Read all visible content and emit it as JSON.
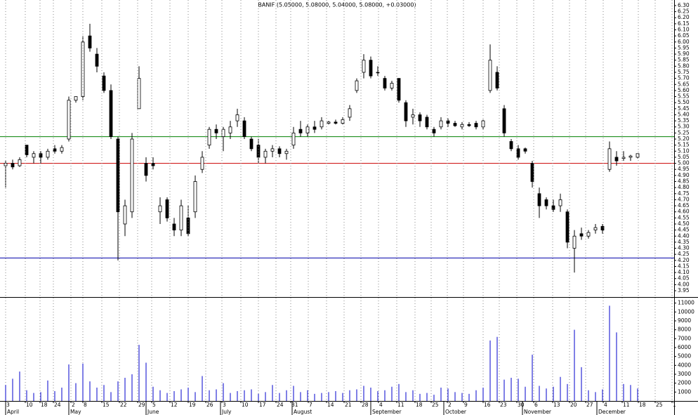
{
  "chart_data": [
    {
      "type": "candlestick",
      "title": "BANIF (5.05000, 5.08000, 5.04000, 5.08000, +0.03000)",
      "x": [
        0,
        1,
        2,
        3,
        4,
        5,
        6,
        7,
        8,
        9,
        10,
        11,
        12,
        13,
        14,
        15,
        16,
        17,
        18,
        19,
        20,
        21,
        22,
        23,
        24,
        25,
        26,
        27,
        28,
        29,
        30,
        31,
        32,
        33,
        34,
        35,
        36,
        37,
        38,
        39,
        40,
        41,
        42,
        43,
        44,
        45,
        46,
        47,
        48,
        49,
        50,
        51,
        52,
        53,
        54,
        55,
        56,
        57,
        58,
        59,
        60,
        61,
        62,
        63,
        64,
        65,
        66,
        67,
        68,
        69,
        70,
        71,
        72,
        73,
        74,
        75,
        76,
        77,
        78,
        79,
        80,
        81,
        82,
        83,
        84,
        85,
        86,
        87,
        88,
        89,
        90
      ],
      "open": [
        4.98,
        5.0,
        4.98,
        5.15,
        5.05,
        5.08,
        5.05,
        5.12,
        5.1,
        5.2,
        5.52,
        5.55,
        6.05,
        5.9,
        5.72,
        5.6,
        5.2,
        4.5,
        4.6,
        5.45,
        5.0,
        5.0,
        4.6,
        4.7,
        4.5,
        4.45,
        4.55,
        4.6,
        4.95,
        5.15,
        5.28,
        5.22,
        5.25,
        5.35,
        5.35,
        5.2,
        5.15,
        5.05,
        5.1,
        5.12,
        5.08,
        5.15,
        5.28,
        5.25,
        5.3,
        5.3,
        5.33,
        5.34,
        5.33,
        5.38,
        5.6,
        5.75,
        5.85,
        5.75,
        5.7,
        5.62,
        5.7,
        5.5,
        5.38,
        5.4,
        5.38,
        5.28,
        5.3,
        5.35,
        5.33,
        5.3,
        5.32,
        5.33,
        5.3,
        5.6,
        5.75,
        5.45,
        5.18,
        5.12,
        5.12,
        5.0,
        4.75,
        4.7,
        4.65,
        4.65,
        4.6,
        4.3,
        4.42,
        4.4,
        4.45,
        4.48,
        4.95,
        5.05,
        5.04,
        5.05,
        5.05
      ],
      "high": [
        5.02,
        5.03,
        5.05,
        5.15,
        5.1,
        5.1,
        5.12,
        5.15,
        5.15,
        5.55,
        5.55,
        6.05,
        6.15,
        5.95,
        5.75,
        5.65,
        5.22,
        4.7,
        5.25,
        5.8,
        5.05,
        5.05,
        4.72,
        4.72,
        4.55,
        4.7,
        4.65,
        4.9,
        5.1,
        5.3,
        5.32,
        5.3,
        5.35,
        5.45,
        5.38,
        5.22,
        5.2,
        5.12,
        5.15,
        5.14,
        5.12,
        5.3,
        5.35,
        5.32,
        5.35,
        5.38,
        5.35,
        5.36,
        5.38,
        5.48,
        5.7,
        5.9,
        5.88,
        5.8,
        5.72,
        5.68,
        5.7,
        5.52,
        5.45,
        5.42,
        5.4,
        5.3,
        5.38,
        5.37,
        5.35,
        5.34,
        5.34,
        5.35,
        5.36,
        5.98,
        5.8,
        5.48,
        5.2,
        5.15,
        5.13,
        5.02,
        4.8,
        4.72,
        4.7,
        4.75,
        4.62,
        4.45,
        4.47,
        4.45,
        4.5,
        4.5,
        5.18,
        5.1,
        5.1,
        5.07,
        5.08
      ],
      "low": [
        4.8,
        4.95,
        4.97,
        5.05,
        5.0,
        5.0,
        5.03,
        5.08,
        5.08,
        5.18,
        5.5,
        5.52,
        5.92,
        5.75,
        5.58,
        5.2,
        4.2,
        4.4,
        4.55,
        5.45,
        4.85,
        4.95,
        4.5,
        4.52,
        4.4,
        4.4,
        4.4,
        4.55,
        4.92,
        5.12,
        5.2,
        5.1,
        5.2,
        5.3,
        5.2,
        5.1,
        5.0,
        5.0,
        5.05,
        5.05,
        5.03,
        5.12,
        5.22,
        5.22,
        5.25,
        5.28,
        5.32,
        5.32,
        5.32,
        5.35,
        5.58,
        5.7,
        5.7,
        5.72,
        5.6,
        5.6,
        5.5,
        5.3,
        5.32,
        5.3,
        5.28,
        5.22,
        5.28,
        5.3,
        5.3,
        5.28,
        5.3,
        5.28,
        5.28,
        5.58,
        5.6,
        5.22,
        5.1,
        5.03,
        5.08,
        4.8,
        4.55,
        4.62,
        4.6,
        4.6,
        4.3,
        4.1,
        4.37,
        4.38,
        4.42,
        4.42,
        4.93,
        4.98,
        5.02,
        5.02,
        5.04
      ],
      "close": [
        5.0,
        4.97,
        5.03,
        5.07,
        5.08,
        5.05,
        5.1,
        5.1,
        5.13,
        5.52,
        5.55,
        6.0,
        5.95,
        5.8,
        5.6,
        5.22,
        4.6,
        4.65,
        5.2,
        5.7,
        4.9,
        4.98,
        4.65,
        4.55,
        4.45,
        4.65,
        4.42,
        4.85,
        5.05,
        5.28,
        5.25,
        5.28,
        5.3,
        5.4,
        5.22,
        5.12,
        5.05,
        5.1,
        5.12,
        5.08,
        5.1,
        5.25,
        5.25,
        5.3,
        5.28,
        5.35,
        5.34,
        5.33,
        5.36,
        5.45,
        5.68,
        5.85,
        5.72,
        5.75,
        5.62,
        5.66,
        5.52,
        5.35,
        5.4,
        5.35,
        5.3,
        5.25,
        5.35,
        5.33,
        5.31,
        5.32,
        5.31,
        5.3,
        5.35,
        5.85,
        5.62,
        5.25,
        5.12,
        5.05,
        5.1,
        4.85,
        4.65,
        4.65,
        4.62,
        4.7,
        4.35,
        4.4,
        4.4,
        4.43,
        4.47,
        4.45,
        5.12,
        5.02,
        5.05,
        5.06,
        5.08
      ],
      "color": "#000000",
      "xlim": [
        -0.8,
        95.2
      ],
      "ylim": [
        3.898,
        6.346
      ],
      "yticks": [
        3.95,
        {
          "value": 4,
          "label": "4.00"
        },
        4.05,
        {
          "value": 4.1,
          "label": "4.10"
        },
        4.15,
        {
          "value": 4.2,
          "label": "4.20"
        },
        4.25,
        {
          "value": 4.3,
          "label": "4.30"
        },
        4.35,
        {
          "value": 4.4,
          "label": "4.40"
        },
        4.45,
        {
          "value": 4.5,
          "label": "4.50"
        },
        4.55,
        {
          "value": 4.6,
          "label": "4.60"
        },
        4.65,
        {
          "value": 4.7,
          "label": "4.70"
        },
        4.75,
        {
          "value": 4.8,
          "label": "4.80"
        },
        4.85,
        {
          "value": 4.9,
          "label": "4.90"
        },
        4.95,
        {
          "value": 5,
          "label": "5.00"
        },
        5.05,
        {
          "value": 5.1,
          "label": "5.10"
        },
        5.15,
        {
          "value": 5.2,
          "label": "5.20"
        },
        5.25,
        {
          "value": 5.3,
          "label": "5.30"
        },
        5.35,
        {
          "value": 5.4,
          "label": "5.40"
        },
        5.45,
        {
          "value": 5.5,
          "label": "5.50"
        },
        5.55,
        {
          "value": 5.6,
          "label": "5.60"
        },
        5.65,
        {
          "value": 5.7,
          "label": "5.70"
        },
        5.75,
        {
          "value": 5.8,
          "label": "5.80"
        },
        5.85,
        {
          "value": 5.9,
          "label": "5.90"
        },
        5.95,
        {
          "value": 6,
          "label": "6.00"
        },
        6.05,
        {
          "value": 6.1,
          "label": "6.10"
        },
        6.15,
        {
          "value": 6.2,
          "label": "6.20"
        },
        6.25,
        {
          "value": 6.3,
          "label": "6.30"
        }
      ],
      "hlines": [
        {
          "value": 5.22,
          "color": "#008000"
        },
        {
          "value": 5.0,
          "color": "#cc0000"
        },
        {
          "value": 4.22,
          "color": "#0000aa"
        }
      ]
    },
    {
      "type": "bar",
      "x": [
        0,
        1,
        2,
        3,
        4,
        5,
        6,
        7,
        8,
        9,
        10,
        11,
        12,
        13,
        14,
        15,
        16,
        17,
        18,
        19,
        20,
        21,
        22,
        23,
        24,
        25,
        26,
        27,
        28,
        29,
        30,
        31,
        32,
        33,
        34,
        35,
        36,
        37,
        38,
        39,
        40,
        41,
        42,
        43,
        44,
        45,
        46,
        47,
        48,
        49,
        50,
        51,
        52,
        53,
        54,
        55,
        56,
        57,
        58,
        59,
        60,
        61,
        62,
        63,
        64,
        65,
        66,
        67,
        68,
        69,
        70,
        71,
        72,
        73,
        74,
        75,
        76,
        77,
        78,
        79,
        80,
        81,
        82,
        83,
        84,
        85,
        86,
        87,
        88,
        89,
        90
      ],
      "values": [
        1800,
        2500,
        3300,
        1200,
        900,
        1000,
        2300,
        1100,
        1500,
        4100,
        2000,
        4200,
        2200,
        1500,
        1800,
        1000,
        2200,
        2600,
        3000,
        6300,
        4300,
        1600,
        1200,
        900,
        1100,
        1300,
        1500,
        1000,
        2800,
        1200,
        1300,
        2000,
        900,
        1100,
        1200,
        1300,
        800,
        1000,
        1800,
        900,
        1200,
        1700,
        1000,
        1200,
        800,
        900,
        1000,
        1100,
        900,
        1200,
        1300,
        1700,
        1500,
        1100,
        1200,
        1600,
        1900,
        1000,
        1200,
        800,
        900,
        700,
        1500,
        1400,
        1000,
        900,
        800,
        1200,
        1500,
        6800,
        7200,
        2400,
        2600,
        2500,
        1600,
        5200,
        1700,
        1400,
        1600,
        2700,
        1900,
        8000,
        3800,
        1200,
        1000,
        1300,
        10700,
        7700,
        1900,
        1800,
        1400
      ],
      "color": "#0000cc",
      "xlim": [
        -0.8,
        95.2
      ],
      "ylim": [
        0,
        11600
      ],
      "yticks": [
        1000,
        2000,
        3000,
        4000,
        5000,
        6000,
        7000,
        8000,
        9000,
        10000,
        11000
      ],
      "xticks": [
        {
          "value": 0,
          "label": "3"
        },
        {
          "value": 2.8,
          "label": "10"
        },
        {
          "value": 4.9,
          "label": "18"
        },
        {
          "value": 6.8,
          "label": "24"
        },
        {
          "value": 9.3,
          "label": "2"
        },
        {
          "value": 11,
          "label": "8"
        },
        {
          "value": 13.7,
          "label": "15"
        },
        {
          "value": 16.2,
          "label": "22"
        },
        {
          "value": 18.8,
          "label": "29"
        },
        {
          "value": 20.8,
          "label": "5"
        },
        {
          "value": 23.4,
          "label": "12"
        },
        {
          "value": 26,
          "label": "19"
        },
        {
          "value": 28.5,
          "label": "26"
        },
        {
          "value": 30.8,
          "label": "3"
        },
        {
          "value": 33.5,
          "label": "10"
        },
        {
          "value": 36,
          "label": "17"
        },
        {
          "value": 38.5,
          "label": "24"
        },
        {
          "value": 40.6,
          "label": "31"
        },
        {
          "value": 43.1,
          "label": "7"
        },
        {
          "value": 45.7,
          "label": "14"
        },
        {
          "value": 48.2,
          "label": "21"
        },
        {
          "value": 50.6,
          "label": "28"
        },
        {
          "value": 53.1,
          "label": "4"
        },
        {
          "value": 55.7,
          "label": "11"
        },
        {
          "value": 58.3,
          "label": "18"
        },
        {
          "value": 60.6,
          "label": "25"
        },
        {
          "value": 62.9,
          "label": "2"
        },
        {
          "value": 65.2,
          "label": "9"
        },
        {
          "value": 68,
          "label": "16"
        },
        {
          "value": 70.3,
          "label": "23"
        },
        {
          "value": 72.8,
          "label": "30"
        },
        {
          "value": 75.2,
          "label": "6"
        },
        {
          "value": 77.9,
          "label": "13"
        },
        {
          "value": 80.3,
          "label": "20"
        },
        {
          "value": 82.6,
          "label": "27"
        },
        {
          "value": 85.1,
          "label": "4"
        },
        {
          "value": 87.8,
          "label": "11"
        },
        {
          "value": 90.1,
          "label": "18"
        },
        {
          "value": 92.5,
          "label": "25"
        },
        {
          "value": 94.9,
          "label": "1"
        }
      ],
      "month_ticks": [
        {
          "value": 0,
          "label": "April"
        },
        {
          "value": 9.0,
          "label": "May"
        },
        {
          "value": 20.0,
          "label": "June"
        },
        {
          "value": 30.6,
          "label": "July"
        },
        {
          "value": 40.8,
          "label": "August"
        },
        {
          "value": 52.0,
          "label": "September"
        },
        {
          "value": 62.4,
          "label": "October"
        },
        {
          "value": 73.6,
          "label": "November"
        },
        {
          "value": 84.2,
          "label": "December"
        }
      ]
    }
  ]
}
